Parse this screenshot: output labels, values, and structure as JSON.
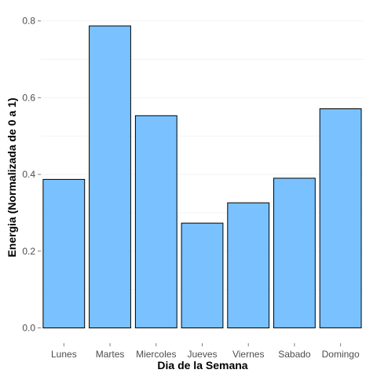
{
  "chart_data": {
    "type": "bar",
    "categories": [
      "Lunes",
      "Martes",
      "Miercoles",
      "Jueves",
      "Viernes",
      "Sabado",
      "Domingo"
    ],
    "values": [
      0.387,
      0.787,
      0.553,
      0.273,
      0.326,
      0.39,
      0.571
    ],
    "title": "",
    "xlabel": "Dia de la Semana",
    "ylabel": "Energia (Normalizada de 0 a 1)",
    "ylim": [
      -0.04,
      0.83
    ],
    "yticks": [
      "0.0",
      "0.2",
      "0.4",
      "0.6",
      "0.8"
    ],
    "grid": true,
    "legend": "none",
    "colors": {
      "bar_fill": "#79C2FF",
      "bar_stroke": "#000000",
      "grid": "#F3F3F3"
    }
  }
}
